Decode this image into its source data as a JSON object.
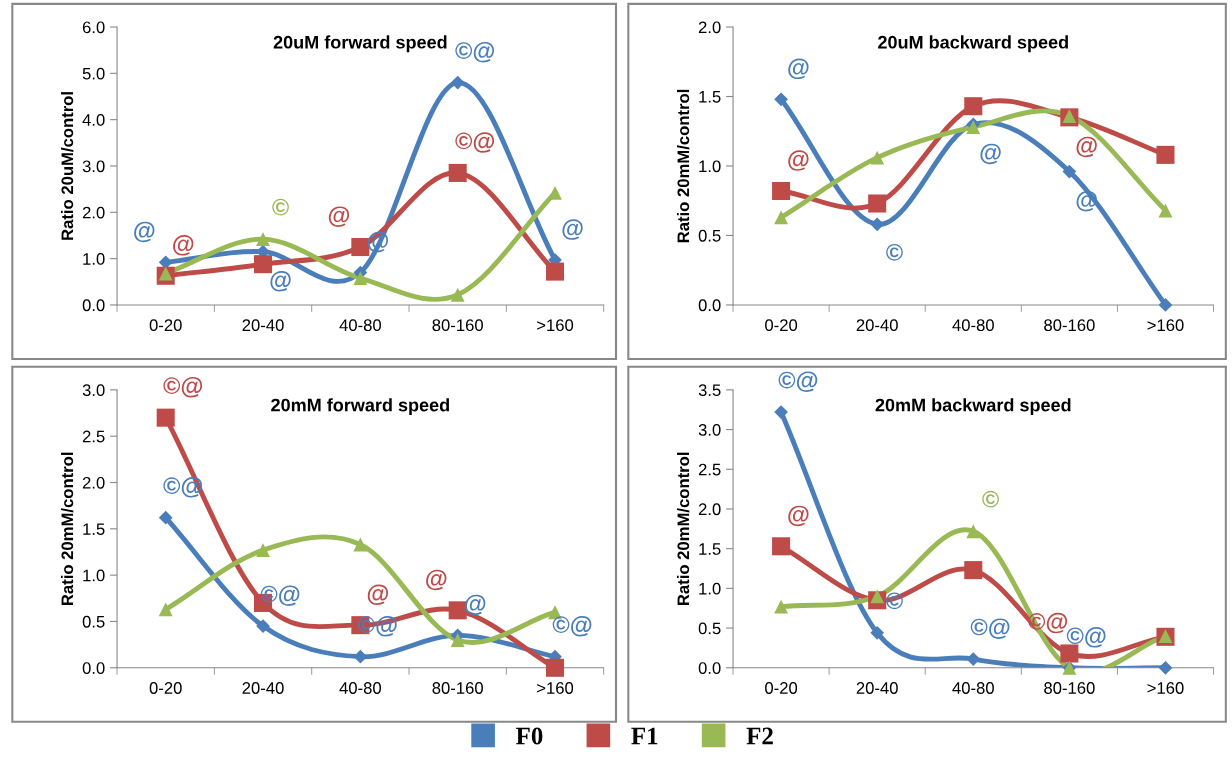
{
  "chart_data": [
    {
      "type": "line",
      "title": "20uM forward speed",
      "ylabel": "Ratio 20uM/control",
      "categories": [
        "0-20",
        "20-40",
        "40-80",
        "80-160",
        ">160"
      ],
      "ylim": [
        0,
        6
      ],
      "yticks": [
        {
          "value": 0,
          "label": "0.0"
        },
        {
          "value": 1,
          "label": "1.0"
        },
        {
          "value": 2,
          "label": "2.0"
        },
        {
          "value": 3,
          "label": "3.0"
        },
        {
          "value": 4,
          "label": "4.0"
        },
        {
          "value": 5,
          "label": "5.0"
        },
        {
          "value": 6,
          "label": "6.0"
        }
      ],
      "series": [
        {
          "color": "#4a7ebb",
          "marker": "diamond",
          "values": [
            0.92,
            1.15,
            0.7,
            4.8,
            0.97
          ]
        },
        {
          "color": "#be4b48",
          "marker": "square",
          "values": [
            0.63,
            0.88,
            1.25,
            2.85,
            0.72
          ]
        },
        {
          "color": "#98b954",
          "marker": "triangle",
          "values": [
            0.68,
            1.42,
            0.58,
            0.22,
            2.42
          ]
        }
      ],
      "annotations": [
        {
          "text": "@",
          "x": "0-20",
          "y": 0.92
        },
        {
          "text": "@",
          "x": "0-20",
          "y": 0.63
        },
        {
          "text": "©",
          "x": "20-40",
          "y": 1.42
        },
        {
          "text": "@",
          "x": "20-40",
          "y": 1.15
        },
        {
          "text": "@",
          "x": "40-80",
          "y": 1.25
        },
        {
          "text": "@",
          "x": "40-80",
          "y": 0.7
        },
        {
          "text": "©@",
          "x": "80-160",
          "y": 4.8
        },
        {
          "text": "©@",
          "x": "80-160",
          "y": 2.85
        },
        {
          "text": "@",
          "x": ">160",
          "y": 0.97
        }
      ]
    },
    {
      "type": "line",
      "title": "20uM backward speed",
      "ylabel": "Ratio 20mM/control",
      "categories": [
        "0-20",
        "20-40",
        "40-80",
        "80-160",
        ">160"
      ],
      "ylim": [
        0,
        2
      ],
      "yticks": [
        {
          "value": 0,
          "label": "0.0"
        },
        {
          "value": 0.5,
          "label": "0.5"
        },
        {
          "value": 1,
          "label": "1.0"
        },
        {
          "value": 1.5,
          "label": "1.5"
        },
        {
          "value": 2,
          "label": "2.0"
        }
      ],
      "series": [
        {
          "color": "#4a7ebb",
          "marker": "diamond",
          "values": [
            1.48,
            0.58,
            1.3,
            0.96,
            0.0
          ]
        },
        {
          "color": "#be4b48",
          "marker": "square",
          "values": [
            0.82,
            0.73,
            1.43,
            1.35,
            1.08
          ]
        },
        {
          "color": "#98b954",
          "marker": "triangle",
          "values": [
            0.63,
            1.06,
            1.28,
            1.36,
            0.68
          ]
        }
      ],
      "annotations": [
        {
          "text": "@",
          "x": "0-20",
          "y": 1.48
        },
        {
          "text": "@",
          "x": "0-20",
          "y": 0.82
        },
        {
          "text": "©",
          "x": "20-40",
          "y": 0.58
        },
        {
          "text": "@",
          "x": "40-80",
          "y": 1.3
        },
        {
          "text": "@",
          "x": "80-160",
          "y": 1.35
        },
        {
          "text": "@",
          "x": "80-160",
          "y": 0.96
        }
      ]
    },
    {
      "type": "line",
      "title": "20mM forward speed",
      "ylabel": "Ratio 20mM/control",
      "categories": [
        "0-20",
        "20-40",
        "40-80",
        "80-160",
        ">160"
      ],
      "ylim": [
        0,
        3
      ],
      "yticks": [
        {
          "value": 0,
          "label": "0.0"
        },
        {
          "value": 0.5,
          "label": "0.5"
        },
        {
          "value": 1,
          "label": "1.0"
        },
        {
          "value": 1.5,
          "label": "1.5"
        },
        {
          "value": 2,
          "label": "2.0"
        },
        {
          "value": 2.5,
          "label": "2.5"
        },
        {
          "value": 3,
          "label": "3.0"
        }
      ],
      "series": [
        {
          "color": "#4a7ebb",
          "marker": "diamond",
          "values": [
            1.62,
            0.45,
            0.12,
            0.35,
            0.12
          ]
        },
        {
          "color": "#be4b48",
          "marker": "square",
          "values": [
            2.7,
            0.7,
            0.46,
            0.62,
            0.0
          ]
        },
        {
          "color": "#98b954",
          "marker": "triangle",
          "values": [
            0.63,
            1.27,
            1.33,
            0.3,
            0.6
          ]
        }
      ],
      "annotations": [
        {
          "text": "©@",
          "x": "0-20",
          "y": 2.7
        },
        {
          "text": "©@",
          "x": "0-20",
          "y": 1.62
        },
        {
          "text": "©@",
          "x": "20-40",
          "y": 0.45
        },
        {
          "text": "@",
          "x": "40-80",
          "y": 0.46
        },
        {
          "text": "©@",
          "x": "40-80",
          "y": 0.12
        },
        {
          "text": "@",
          "x": "80-160",
          "y": 0.62
        },
        {
          "text": "@",
          "x": "80-160",
          "y": 0.35
        },
        {
          "text": "©@",
          "x": ">160",
          "y": 0.12
        }
      ]
    },
    {
      "type": "line",
      "title": "20mM backward speed",
      "ylabel": "Ratio 20mM/control",
      "categories": [
        "0-20",
        "20-40",
        "40-80",
        "80-160",
        ">160"
      ],
      "ylim": [
        0,
        3.5
      ],
      "yticks": [
        {
          "value": 0,
          "label": "0.0"
        },
        {
          "value": 0.5,
          "label": "0.5"
        },
        {
          "value": 1,
          "label": "1.0"
        },
        {
          "value": 1.5,
          "label": "1.5"
        },
        {
          "value": 2,
          "label": "2.0"
        },
        {
          "value": 2.5,
          "label": "2.5"
        },
        {
          "value": 3,
          "label": "3.0"
        },
        {
          "value": 3.5,
          "label": "3.5"
        }
      ],
      "legend": "bottom",
      "series": [
        {
          "name": "F0",
          "color": "#4a7ebb",
          "marker": "diamond",
          "values": [
            3.22,
            0.44,
            0.11,
            0.0,
            0.0
          ]
        },
        {
          "name": "F1",
          "color": "#be4b48",
          "marker": "square",
          "values": [
            1.53,
            0.85,
            1.23,
            0.18,
            0.39
          ]
        },
        {
          "name": "F2",
          "color": "#98b954",
          "marker": "triangle",
          "values": [
            0.77,
            0.9,
            1.72,
            0.0,
            0.4
          ]
        }
      ],
      "annotations": [
        {
          "text": "©@",
          "x": "0-20",
          "y": 3.22
        },
        {
          "text": "@",
          "x": "0-20",
          "y": 1.53
        },
        {
          "text": "©",
          "x": "20-40",
          "y": 0.44
        },
        {
          "text": "©",
          "x": "40-80",
          "y": 1.72
        },
        {
          "text": "©@",
          "x": "40-80",
          "y": 0.11
        },
        {
          "text": "©@",
          "x": "80-160",
          "y": 0.18
        },
        {
          "text": "©@",
          "x": "80-160",
          "y": 0.0
        }
      ]
    }
  ]
}
